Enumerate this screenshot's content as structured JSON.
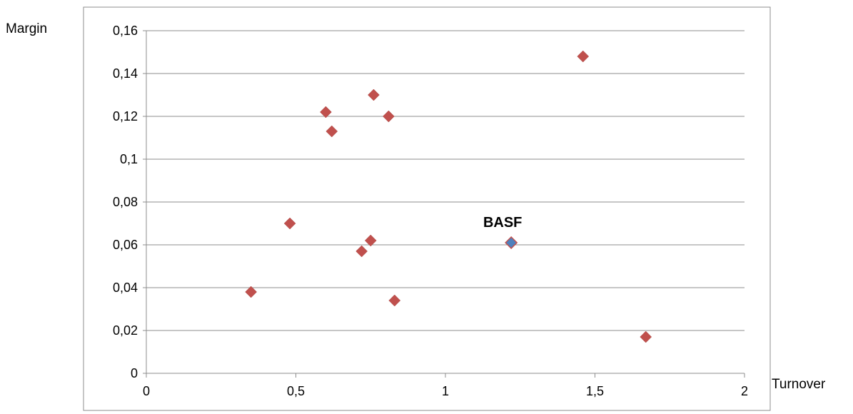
{
  "chart_data": {
    "type": "scatter",
    "xlabel": "Turnover",
    "ylabel": "Margin",
    "xlim": [
      0,
      2
    ],
    "ylim": [
      0,
      0.16
    ],
    "x_ticks": [
      "0",
      "0,5",
      "1",
      "1,5",
      "2"
    ],
    "y_ticks": [
      "0",
      "0,02",
      "0,04",
      "0,06",
      "0,08",
      "0,1",
      "0,12",
      "0,14",
      "0,16"
    ],
    "grid": "horizontal",
    "legend": "none",
    "colors": {
      "default_marker": "#c0504d",
      "highlight_marker": "#4f81bd",
      "gridline": "#8c8c8c"
    },
    "points": [
      {
        "x": 0.35,
        "y": 0.038
      },
      {
        "x": 0.48,
        "y": 0.07
      },
      {
        "x": 0.6,
        "y": 0.122
      },
      {
        "x": 0.62,
        "y": 0.113
      },
      {
        "x": 0.72,
        "y": 0.057
      },
      {
        "x": 0.75,
        "y": 0.062
      },
      {
        "x": 0.76,
        "y": 0.13
      },
      {
        "x": 0.81,
        "y": 0.12
      },
      {
        "x": 0.83,
        "y": 0.034
      },
      {
        "x": 1.22,
        "y": 0.061,
        "label": "BASF",
        "highlight": true
      },
      {
        "x": 1.46,
        "y": 0.148
      },
      {
        "x": 1.67,
        "y": 0.017
      }
    ]
  }
}
